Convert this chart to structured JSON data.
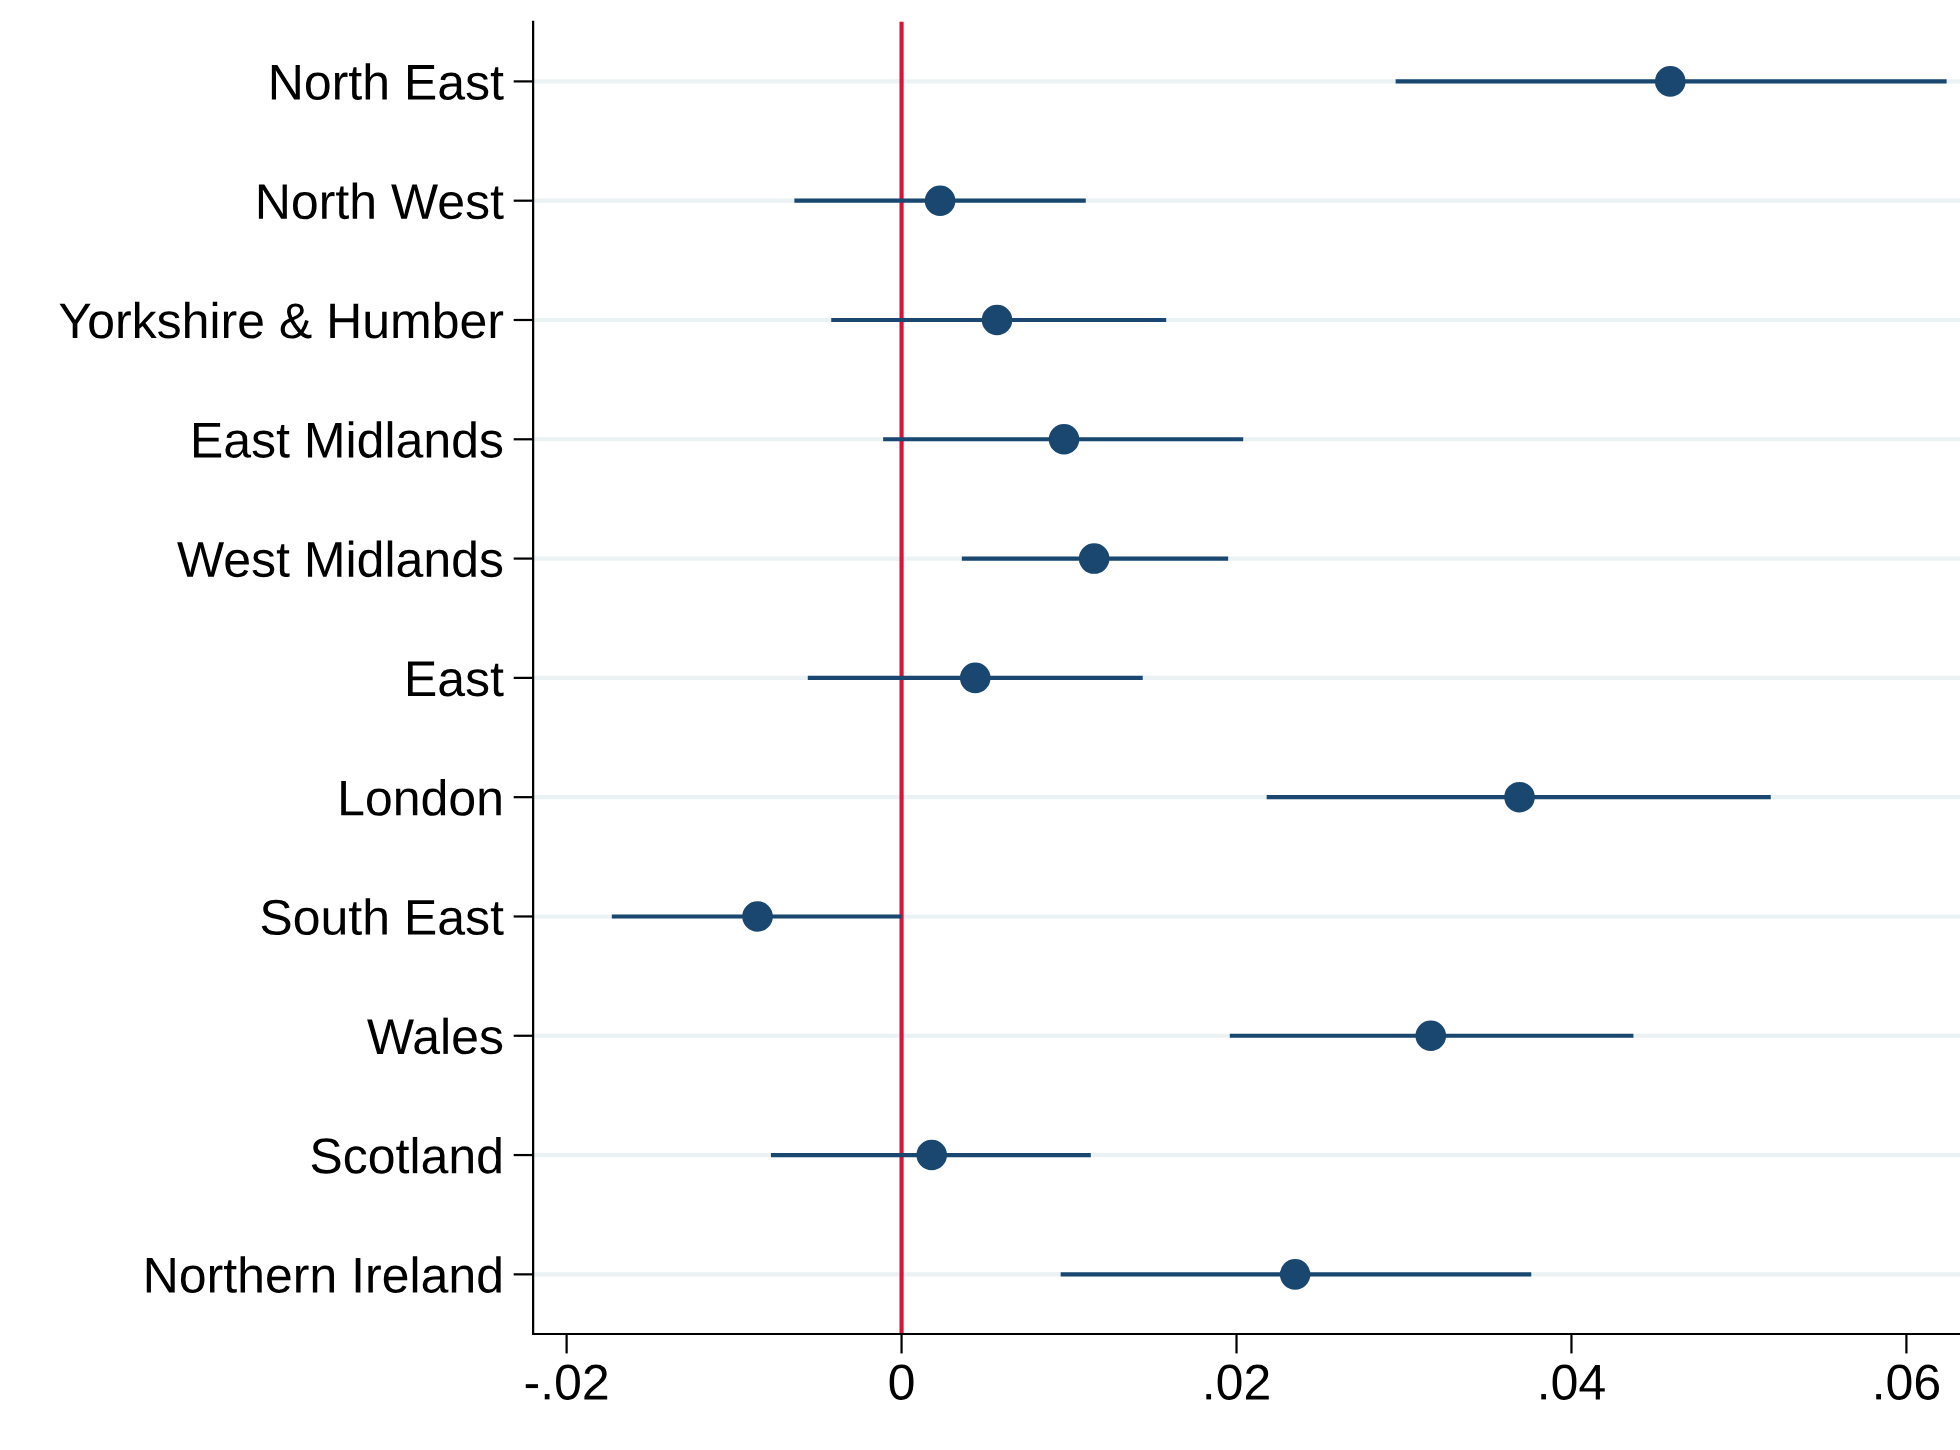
{
  "chart_data": {
    "type": "scatter",
    "orientation": "horizontal",
    "categories": [
      "North East",
      "North West",
      "Yorkshire & Humber",
      "East Midlands",
      "West Midlands",
      "East",
      "London",
      "South East",
      "Wales",
      "Scotland",
      "Northern Ireland"
    ],
    "color": "#1a476f",
    "values": [
      0.0459,
      0.0023,
      0.0057,
      0.0097,
      0.0115,
      0.0044,
      0.0369,
      -0.0086,
      0.0316,
      0.0018,
      0.0235
    ],
    "errors": [
      [
        0.0295,
        0.0624
      ],
      [
        -0.0064,
        0.011
      ],
      [
        -0.0042,
        0.0158
      ],
      [
        -0.0011,
        0.0204
      ],
      [
        0.0036,
        0.0195
      ],
      [
        -0.0056,
        0.0144
      ],
      [
        0.0218,
        0.0519
      ],
      [
        -0.0173,
        0
      ],
      [
        0.0196,
        0.0437
      ],
      [
        -0.0078,
        0.0113
      ],
      [
        0.0095,
        0.0376
      ]
    ],
    "xlim": [
      -0.022,
      0.0632
    ],
    "xticks": [
      {
        "value": -0.02,
        "label": "-.02"
      },
      0,
      {
        "value": 0.02,
        "label": ".02"
      },
      {
        "value": 0.04,
        "label": ".04"
      },
      {
        "value": 0.06,
        "label": ".06"
      }
    ],
    "ref_lines": [
      {
        "axis": "x",
        "value": 0,
        "color": "#d5153a"
      }
    ],
    "grid": "y",
    "marker": "circle"
  }
}
